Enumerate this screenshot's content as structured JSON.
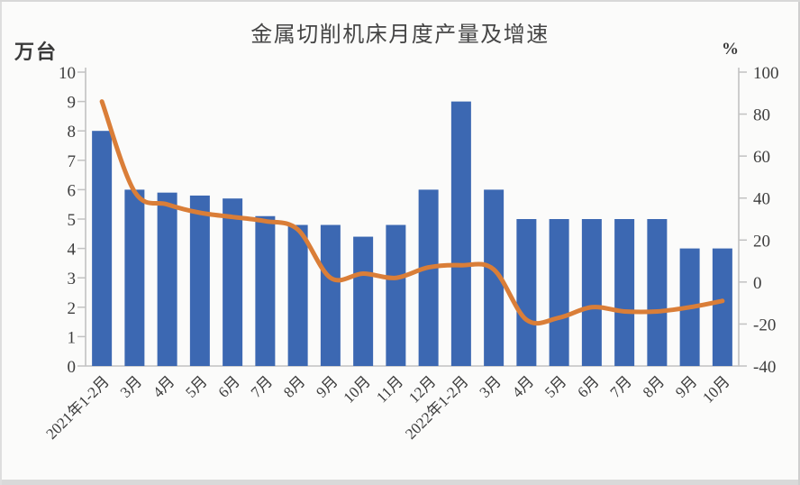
{
  "chart_data": {
    "type": "combo-bar-line",
    "title": "金属切削机床月度产量及增速",
    "left_axis": {
      "unit": "万台",
      "min": 0,
      "max": 10,
      "step": 1,
      "ticks": [
        10,
        9,
        8,
        7,
        6,
        5,
        4,
        3,
        2,
        1,
        0
      ]
    },
    "right_axis": {
      "unit": "%",
      "min": -40,
      "max": 100,
      "step": 20,
      "ticks": [
        100,
        80,
        60,
        40,
        20,
        0,
        -20,
        -40
      ]
    },
    "categories": [
      "2021年1-2月",
      "3月",
      "4月",
      "5月",
      "6月",
      "7月",
      "8月",
      "9月",
      "10月",
      "11月",
      "12月",
      "2022年1-2月",
      "3月",
      "4月",
      "5月",
      "6月",
      "7月",
      "8月",
      "9月",
      "10月"
    ],
    "series": [
      {
        "id": "production",
        "type": "bar",
        "axis": "left",
        "color": "#3c68b2",
        "values": [
          8.0,
          6.0,
          5.9,
          5.8,
          5.7,
          5.1,
          4.8,
          4.8,
          4.4,
          4.8,
          6.0,
          9.0,
          6.0,
          5.0,
          5.0,
          5.0,
          5.0,
          5.0,
          4.0,
          4.0
        ]
      },
      {
        "id": "growth-rate",
        "type": "line",
        "axis": "right",
        "color": "#da7e38",
        "values": [
          86,
          43,
          37,
          33,
          31,
          29,
          25,
          2,
          4,
          2,
          7,
          8,
          6,
          -18,
          -17,
          -12,
          -14,
          -14,
          -12,
          -9
        ]
      }
    ],
    "layout": {
      "grid": false,
      "legend": "none",
      "x_label_rotation": -45
    }
  }
}
